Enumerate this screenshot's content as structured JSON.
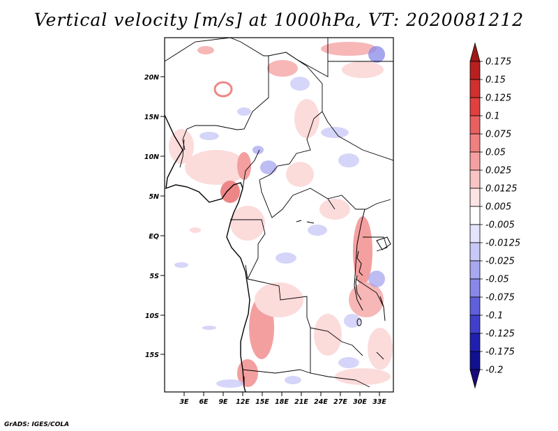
{
  "title": "Vertical velocity [m/s] at 1000hPa, VT: 2020081212",
  "credit": "GrADS: IGES/COLA",
  "map": {
    "lat_labels": [
      "20N",
      "15N",
      "10N",
      "5N",
      "EQ",
      "5S",
      "10S",
      "15S"
    ],
    "lon_labels": [
      "3E",
      "6E",
      "9E",
      "12E",
      "15E",
      "18E",
      "21E",
      "24E",
      "27E",
      "30E",
      "33E"
    ]
  },
  "colorbar": {
    "labels": [
      "0.175",
      "0.15",
      "0.125",
      "0.1",
      "0.075",
      "0.05",
      "0.025",
      "0.0125",
      "0.005",
      "-0.005",
      "-0.0125",
      "-0.025",
      "-0.05",
      "-0.075",
      "-0.1",
      "-0.125",
      "-0.175",
      "-0.2"
    ],
    "colors": [
      "#a01818",
      "#b82020",
      "#d03030",
      "#e04040",
      "#e86060",
      "#f08080",
      "#f5a0a0",
      "#f9c4c4",
      "#fde4e4",
      "#ffffff",
      "#e4e4fd",
      "#c8c8f8",
      "#a8a8f0",
      "#8888e8",
      "#6060dc",
      "#4040cc",
      "#2020b0",
      "#101090",
      "#1a0a7a"
    ]
  }
}
